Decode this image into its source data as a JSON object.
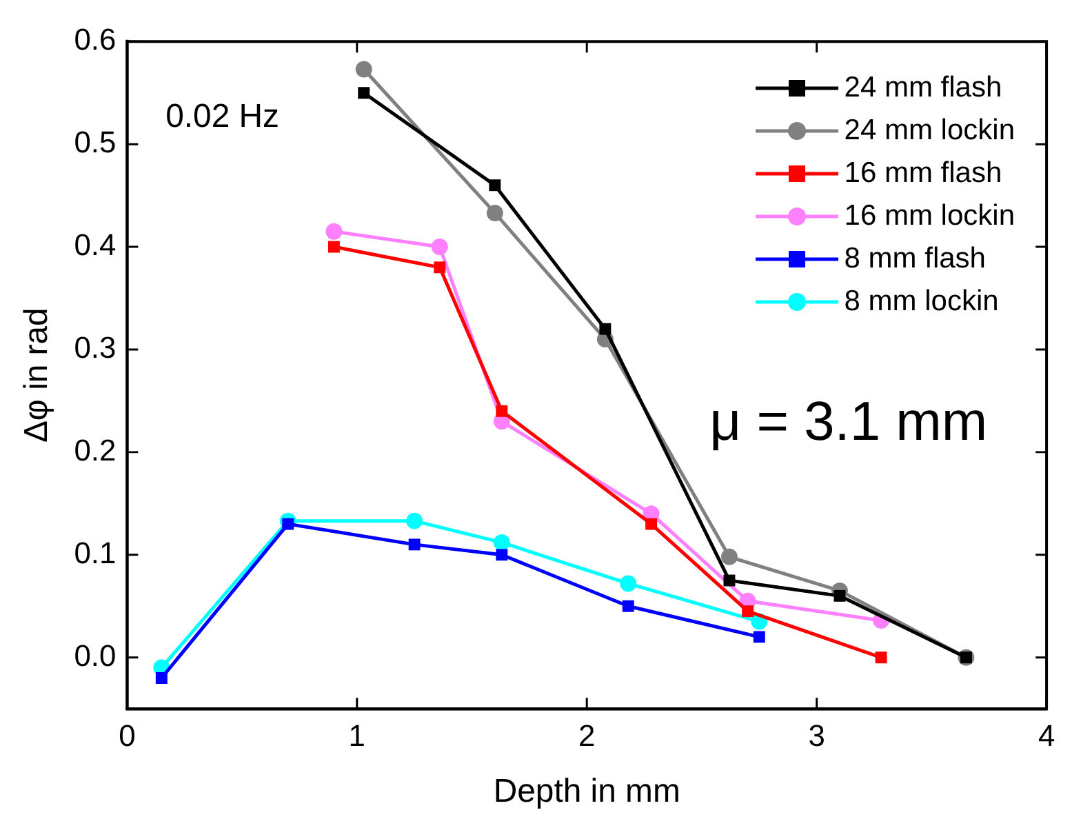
{
  "chart_data": {
    "type": "line",
    "xlabel": "Depth in mm",
    "ylabel": "Δφ in rad",
    "annotations": [
      "0.02 Hz",
      "μ = 3.1 mm"
    ],
    "xlim": [
      0,
      4
    ],
    "xticks": [
      0,
      1,
      2,
      3,
      4
    ],
    "ylim": [
      -0.05,
      0.6
    ],
    "yticks": [
      {
        "value": 0,
        "label": "0.0"
      },
      {
        "value": 0.1,
        "label": "0.1"
      },
      {
        "value": 0.2,
        "label": "0.2"
      },
      {
        "value": 0.3,
        "label": "0.3"
      },
      {
        "value": 0.4,
        "label": "0.4"
      },
      {
        "value": 0.5,
        "label": "0.5"
      },
      {
        "value": 0.6,
        "label": "0.6"
      }
    ],
    "legend": "top right",
    "line_style": "solid",
    "series": [
      {
        "name": "24 mm flash",
        "color": "#000000",
        "marker": "square",
        "x": [
          1.03,
          1.6,
          2.08,
          2.62,
          3.1,
          3.65
        ],
        "values": [
          0.55,
          0.46,
          0.32,
          0.075,
          0.06,
          0
        ]
      },
      {
        "name": "24 mm lockin",
        "color": "#808080",
        "marker": "circle",
        "x": [
          1.03,
          1.6,
          2.08,
          2.62,
          3.1,
          3.65
        ],
        "values": [
          0.573,
          0.433,
          0.31,
          0.098,
          0.065,
          0
        ]
      },
      {
        "name": "16 mm flash",
        "color": "#ff0000",
        "marker": "square",
        "x": [
          0.9,
          1.36,
          1.63,
          2.28,
          2.7,
          3.28
        ],
        "values": [
          0.4,
          0.38,
          0.24,
          0.13,
          0.045,
          0
        ]
      },
      {
        "name": "16 mm lockin",
        "color": "#ff80ff",
        "marker": "circle",
        "x": [
          0.9,
          1.36,
          1.63,
          2.28,
          2.7,
          3.28
        ],
        "values": [
          0.415,
          0.4,
          0.23,
          0.14,
          0.055,
          0.036
        ]
      },
      {
        "name": "8 mm flash",
        "color": "#0000ff",
        "marker": "square",
        "x": [
          0.15,
          0.7,
          1.25,
          1.63,
          2.18,
          2.75
        ],
        "values": [
          -0.02,
          0.13,
          0.11,
          0.1,
          0.05,
          0.02
        ]
      },
      {
        "name": "8 mm lockin",
        "color": "#00ffff",
        "marker": "circle",
        "x": [
          0.15,
          0.7,
          1.25,
          1.63,
          2.18,
          2.75
        ],
        "values": [
          -0.01,
          0.133,
          0.133,
          0.112,
          0.072,
          0.035
        ]
      }
    ]
  }
}
